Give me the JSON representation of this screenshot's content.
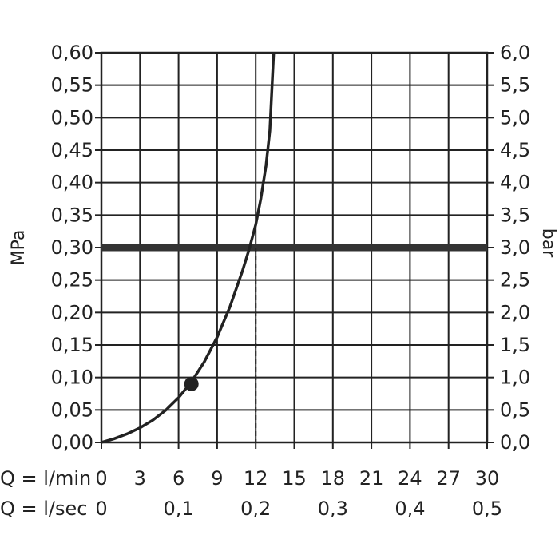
{
  "chart_data": {
    "type": "line",
    "left_axis": {
      "label": "MPa",
      "ylim": [
        0,
        0.6
      ],
      "ticks": [
        "0,00",
        "0,05",
        "0,10",
        "0,15",
        "0,20",
        "0,25",
        "0,30",
        "0,35",
        "0,40",
        "0,45",
        "0,50",
        "0,55",
        "0,60"
      ]
    },
    "right_axis": {
      "label": "bar",
      "ylim": [
        0,
        6
      ],
      "ticks": [
        "0,0",
        "0,5",
        "1,0",
        "1,5",
        "2,0",
        "2,5",
        "3,0",
        "3,5",
        "4,0",
        "4,5",
        "5,0",
        "5,5",
        "6,0"
      ]
    },
    "x_axis_min": {
      "label": "Q = l/min",
      "xlim": [
        0,
        30
      ],
      "ticks": [
        "0",
        "3",
        "6",
        "9",
        "12",
        "15",
        "18",
        "21",
        "24",
        "27",
        "30"
      ]
    },
    "x_axis_sec": {
      "label": "Q = l/sec",
      "ticks": [
        {
          "value": 0,
          "label": "0"
        },
        {
          "value": 0.1,
          "label": "0,1"
        },
        {
          "value": 0.2,
          "label": "0,2"
        },
        {
          "value": 0.3,
          "label": "0,3"
        },
        {
          "value": 0.4,
          "label": "0,4"
        },
        {
          "value": 0.5,
          "label": "0,5"
        }
      ]
    },
    "grid": true,
    "series": [
      {
        "x": [
          0,
          1,
          2,
          3,
          4,
          5,
          6,
          7,
          8,
          9,
          10,
          11,
          11.5,
          12,
          12.4,
          12.8,
          13.1,
          13.4
        ],
        "y": [
          0,
          0.0058,
          0.0132,
          0.0225,
          0.0343,
          0.0495,
          0.0688,
          0.0933,
          0.124,
          0.162,
          0.209,
          0.266,
          0.298,
          0.335,
          0.375,
          0.426,
          0.48,
          0.6
        ]
      }
    ],
    "reference_line": {
      "y": 0.3
    },
    "marker_point": {
      "x": 7,
      "y": 0.09
    },
    "drop_line": {
      "x": 12,
      "y": 0.3
    }
  }
}
